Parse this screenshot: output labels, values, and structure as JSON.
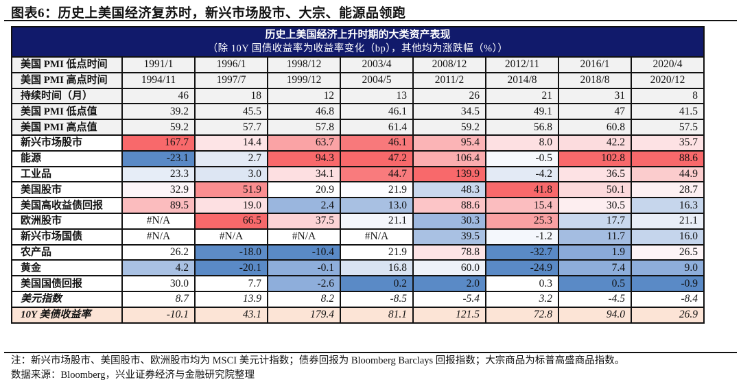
{
  "title": "图表6：历史上美国经济复苏时，新兴市场股市、大宗、能源品领跑",
  "table": {
    "header_title": "历史上美国经济上升时期的大类资产表现",
    "header_subtitle": "（除 10Y 国债收益率为收益率变化（bp），其他均为涨跌幅（%））",
    "rows": [
      {
        "label": "美国 PMI 低点时间",
        "type": "meta",
        "align": "center",
        "values": [
          "1991/1",
          "1996/1",
          "1998/12",
          "2003/4",
          "2008/12",
          "2012/11",
          "2016/1",
          "2020/4"
        ]
      },
      {
        "label": "美国 PMI 高点时间",
        "type": "meta",
        "align": "center",
        "values": [
          "1994/11",
          "1997/7",
          "1999/12",
          "2004/5",
          "2011/2",
          "2014/8",
          "2018/8",
          "2020/12"
        ]
      },
      {
        "label": "持续时间（月）",
        "type": "meta",
        "align": "num",
        "values": [
          "46",
          "18",
          "12",
          "13",
          "26",
          "21",
          "31",
          "8"
        ]
      },
      {
        "label": "美国 PMI 低点值",
        "type": "meta",
        "align": "num",
        "values": [
          "39.2",
          "45.5",
          "46.8",
          "46.1",
          "34.5",
          "49.1",
          "47",
          "41.5"
        ]
      },
      {
        "label": "美国 PMI 高点值",
        "type": "meta",
        "align": "num",
        "values": [
          "59.2",
          "57.7",
          "57.8",
          "61.4",
          "59.2",
          "56.8",
          "60.8",
          "57.5"
        ]
      },
      {
        "label": "新兴市场股市",
        "type": "asset",
        "values": [
          "167.7",
          "14.4",
          "63.7",
          "46.1",
          "95.4",
          "8.0",
          "42.2",
          "35.7"
        ],
        "fills": [
          "#f8696b",
          "#fde4e6",
          "#faa3a5",
          "#f8797b",
          "#fbb4b6",
          "#fde0e2",
          "#fcdcde",
          "#fde2e4"
        ]
      },
      {
        "label": "能源",
        "type": "asset",
        "values": [
          "-23.1",
          "2.7",
          "94.3",
          "47.2",
          "106.4",
          "-0.5",
          "102.8",
          "88.6"
        ],
        "fills": [
          "#5a8ac6",
          "#e3eaf5",
          "#f8696b",
          "#f8696b",
          "#fbadaf",
          "#f7f9fd",
          "#f8696b",
          "#f8696b"
        ]
      },
      {
        "label": "工业品",
        "type": "asset",
        "values": [
          "23.3",
          "3.0",
          "34.1",
          "44.7",
          "139.9",
          "-4.2",
          "36.5",
          "44.9"
        ],
        "fills": [
          "#e6edf7",
          "#dde6f3",
          "#fddfe1",
          "#f97b7d",
          "#f8696b",
          "#e3eaf5",
          "#fde2e4",
          "#fbcccd"
        ]
      },
      {
        "label": "美国股市",
        "type": "asset",
        "values": [
          "32.9",
          "51.9",
          "20.9",
          "21.9",
          "48.3",
          "41.8",
          "50.1",
          "28.7"
        ],
        "fills": [
          "#fcf5f8",
          "#fa8e90",
          "#ffffff",
          "#fcfcff",
          "#c9d8ee",
          "#f8696b",
          "#fcd9db",
          "#fdf0f2"
        ]
      },
      {
        "label": "美国高收益债回报",
        "type": "asset",
        "values": [
          "89.5",
          "19.0",
          "2.4",
          "13.0",
          "88.6",
          "15.4",
          "30.5",
          "16.3"
        ],
        "fills": [
          "#fbbcbe",
          "#fde0e2",
          "#9ab6de",
          "#a8c0e2",
          "#fcc5c7",
          "#fbbdbf",
          "#fdeef0",
          "#c6d6ec"
        ]
      },
      {
        "label": "欧洲股市",
        "type": "asset",
        "values": [
          "#N/A",
          "66.5",
          "37.5",
          "21.1",
          "30.3",
          "25.3",
          "17.7",
          "21.1"
        ],
        "fills": [
          "#ffffff",
          "#f8696b",
          "#fcd3d5",
          "#f4f6fb",
          "#9eb8df",
          "#f9a1a3",
          "#c9d8ee",
          "#e9eef7"
        ]
      },
      {
        "label": "新兴市场国债",
        "type": "asset",
        "values": [
          "#N/A",
          "#N/A",
          "#N/A",
          "#N/A",
          "39.5",
          "-1.2",
          "11.7",
          "16.0"
        ],
        "fills": [
          "#ffffff",
          "#ffffff",
          "#ffffff",
          "#ffffff",
          "#a9c1e3",
          "#f4f7fc",
          "#a4bde1",
          "#c5d5ec"
        ]
      },
      {
        "label": "农产品",
        "type": "asset",
        "values": [
          "26.2",
          "-18.0",
          "-10.4",
          "21.9",
          "78.8",
          "-32.7",
          "1.9",
          "26.5"
        ],
        "fills": [
          "#ffffff",
          "#5d8cc7",
          "#5a8ac6",
          "#ffffff",
          "#fde4e6",
          "#5a8ac6",
          "#8aaad9",
          "#fdf4f6"
        ]
      },
      {
        "label": "黄金",
        "type": "asset",
        "values": [
          "4.2",
          "-20.1",
          "-0.1",
          "16.8",
          "60.0",
          "-24.9",
          "7.4",
          "9.0"
        ],
        "fills": [
          "#a9c1e3",
          "#5a8ac6",
          "#8eaedb",
          "#d9e3f2",
          "#eef2f9",
          "#5a8ac6",
          "#8eaedb",
          "#8eaedb"
        ]
      },
      {
        "label": "美国国债回报",
        "type": "asset",
        "values": [
          "30.0",
          "7.7",
          "-2.6",
          "0.2",
          "2.0",
          "0.3",
          "0.5",
          "-0.9"
        ],
        "fills": [
          "#ffffff",
          "#ffffff",
          "#8eaedb",
          "#5a8ac6",
          "#5a8ac6",
          "#ffffff",
          "#5a8ac6",
          "#5a8ac6"
        ]
      },
      {
        "label": "美元指数",
        "type": "italic",
        "values": [
          "8.7",
          "13.9",
          "8.2",
          "-8.5",
          "-5.4",
          "3.2",
          "-4.5",
          "-8.4"
        ],
        "rowfill": "#ffffff"
      },
      {
        "label": "10Y 美债收益率",
        "type": "italic",
        "values": [
          "-10.1",
          "43.1",
          "179.4",
          "81.1",
          "121.5",
          "72.8",
          "94.0",
          "26.9"
        ],
        "rowfill": "#fce4d6"
      }
    ]
  },
  "notes": {
    "note": "注：新兴市场股市、美国股市、欧洲股市均为 MSCI 美元计指数；债券回报为 Bloomberg Barclays 回报指数；大宗商品为标普高盛商品指数。",
    "source": "数据来源：Bloomberg，兴业证券经济与金融研究院整理"
  },
  "colors": {
    "header_bg": "#111a6b",
    "meta_bg": "#f2f2f2",
    "red_max": "#f8696b",
    "blue_max": "#5a8ac6",
    "yield_row": "#fce4d6"
  }
}
